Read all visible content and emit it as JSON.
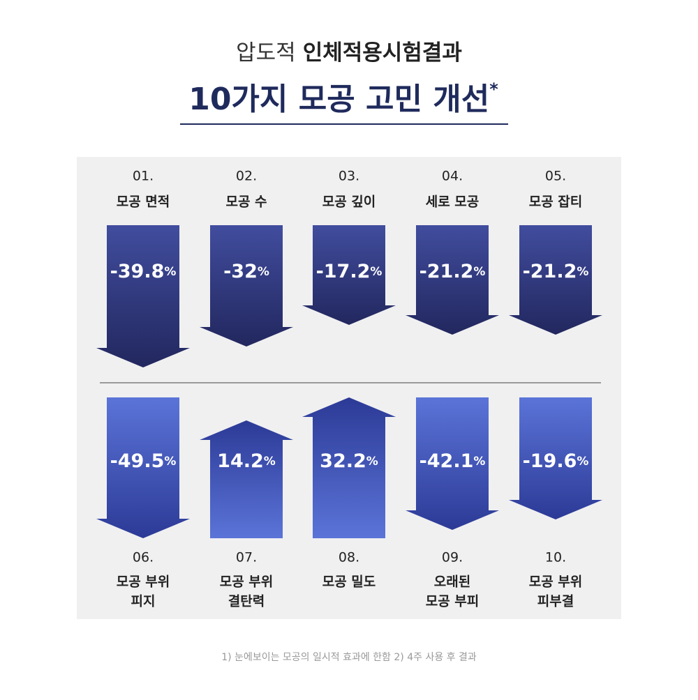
{
  "header": {
    "title_line1": {
      "light": "압도적",
      "bold": "인체적용시험결과"
    },
    "title_line2": {
      "text": "10가지 모공 고민 개선",
      "mark": "*"
    }
  },
  "items": [
    {
      "number": "01.",
      "label": [
        "모공 면적"
      ],
      "value": -39.8,
      "unit": "%"
    },
    {
      "number": "02.",
      "label": [
        "모공 수"
      ],
      "value": -32,
      "unit": "%"
    },
    {
      "number": "03.",
      "label": [
        "모공 깊이"
      ],
      "value": -17.2,
      "unit": "%"
    },
    {
      "number": "04.",
      "label": [
        "세로 모공"
      ],
      "value": -21.2,
      "unit": "%"
    },
    {
      "number": "05.",
      "label": [
        "모공 잡티"
      ],
      "value": -21.2,
      "unit": "%"
    },
    {
      "number": "06.",
      "label": [
        "모공 부위",
        "피지"
      ],
      "value": -49.5,
      "unit": "%"
    },
    {
      "number": "07.",
      "label": [
        "모공 부위",
        "결탄력"
      ],
      "value": 14.2,
      "unit": "%"
    },
    {
      "number": "08.",
      "label": [
        "모공 밀도"
      ],
      "value": 32.2,
      "unit": "%"
    },
    {
      "number": "09.",
      "label": [
        "오래된",
        "모공 부피"
      ],
      "value": -42.1,
      "unit": "%"
    },
    {
      "number": "10.",
      "label": [
        "모공 부위",
        "피부결"
      ],
      "value": -19.6,
      "unit": "%"
    }
  ],
  "footnote": "1) 눈에보이는 모공의 일시적 효과에 한함 2) 4주 사용 후 결과"
}
